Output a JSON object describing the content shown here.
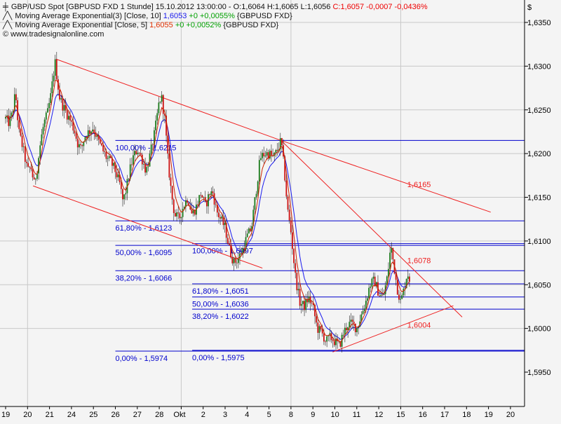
{
  "header": {
    "line1": {
      "icon": "bar-chart-icon",
      "prefix": "GBP/USD Spot [GBPUSD FXD  1 Stunde] 15.10.2012 13:00:00 - O:1,6064 H:1,6065 L:1,6056 ",
      "close_part": "C:1,6057 -0,0007 -0,0436%",
      "close_color": "#ee0000"
    },
    "line2": {
      "icon": "line-icon",
      "label": "Moving Average Exponential(3) [Close, 10] ",
      "value": "1,6053",
      "value_color": "#1a1aee",
      "change": " +0 +0,0055%",
      "change_color": "#00a000",
      "suffix": " {GBPUSD FXD}"
    },
    "line3": {
      "icon": "line-icon",
      "label": "Moving Average Exponential [Close, 5] ",
      "value": "1,6055",
      "value_color": "#e03000",
      "change": " +0 +0,0052%",
      "change_color": "#00a000",
      "suffix": " {GBPUSD FXD}"
    },
    "line4": {
      "icon": "copyright-icon",
      "text": "© www.tradesignalonline.com"
    }
  },
  "colors": {
    "background": "#f4f4f4",
    "grid": "#c8c8c8",
    "fib_line": "#0000cc",
    "trend_line": "#ee2020",
    "candle_up": "#1a7a1a",
    "candle_down": "#cc1111",
    "ema10": "#1a1aee",
    "ema5": "#cc2200",
    "axis": "#000000"
  },
  "chart_data": {
    "type": "candlestick",
    "title": "GBP/USD Spot [GBPUSD FXD  1 Stunde]",
    "currency_label": "$",
    "ylim": [
      1.5915,
      1.6375
    ],
    "y_ticks": [
      "1,5950",
      "1,6000",
      "1,6050",
      "1,6100",
      "1,6150",
      "1,6200",
      "1,6250",
      "1,6300",
      "1,6350"
    ],
    "y_tick_values": [
      1.595,
      1.6,
      1.605,
      1.61,
      1.615,
      1.62,
      1.625,
      1.63,
      1.635
    ],
    "x_ticks": [
      "19",
      "20",
      "21",
      "24",
      "25",
      "26",
      "27",
      "28",
      "Okt",
      "2",
      "3",
      "4",
      "5",
      "8",
      "9",
      "10",
      "11",
      "12",
      "15",
      "16",
      "17",
      "18",
      "19",
      "20"
    ],
    "x_tick_index": [
      0,
      1,
      2,
      3,
      4,
      5,
      6,
      7,
      8,
      9,
      10,
      11,
      12,
      13,
      14,
      15,
      16,
      17,
      18,
      19,
      20,
      21,
      22,
      23
    ],
    "grid": true,
    "price_series": [
      [
        0,
        1.624
      ],
      [
        0.15,
        1.6235
      ],
      [
        0.3,
        1.6245
      ],
      [
        0.45,
        1.627
      ],
      [
        0.6,
        1.6225
      ],
      [
        0.8,
        1.6205
      ],
      [
        1.0,
        1.618
      ],
      [
        1.15,
        1.6185
      ],
      [
        1.3,
        1.6165
      ],
      [
        1.45,
        1.6185
      ],
      [
        1.6,
        1.6215
      ],
      [
        1.75,
        1.6235
      ],
      [
        1.9,
        1.6245
      ],
      [
        2.05,
        1.6265
      ],
      [
        2.25,
        1.6305
      ],
      [
        2.45,
        1.6265
      ],
      [
        2.6,
        1.6255
      ],
      [
        2.8,
        1.6245
      ],
      [
        3.0,
        1.6235
      ],
      [
        3.15,
        1.6225
      ],
      [
        3.3,
        1.621
      ],
      [
        3.45,
        1.6205
      ],
      [
        3.6,
        1.622
      ],
      [
        3.8,
        1.6225
      ],
      [
        4.0,
        1.623
      ],
      [
        4.2,
        1.6215
      ],
      [
        4.4,
        1.6205
      ],
      [
        4.6,
        1.6195
      ],
      [
        4.8,
        1.619
      ],
      [
        5.0,
        1.618
      ],
      [
        5.2,
        1.6165
      ],
      [
        5.35,
        1.6145
      ],
      [
        5.5,
        1.616
      ],
      [
        5.65,
        1.618
      ],
      [
        5.8,
        1.6195
      ],
      [
        6.0,
        1.6205
      ],
      [
        6.2,
        1.6195
      ],
      [
        6.4,
        1.618
      ],
      [
        6.6,
        1.62
      ],
      [
        6.8,
        1.6225
      ],
      [
        7.0,
        1.626
      ],
      [
        7.1,
        1.6265
      ],
      [
        7.25,
        1.624
      ],
      [
        7.4,
        1.619
      ],
      [
        7.55,
        1.6155
      ],
      [
        7.7,
        1.613
      ],
      [
        7.9,
        1.6125
      ],
      [
        8.1,
        1.614
      ],
      [
        8.3,
        1.615
      ],
      [
        8.5,
        1.613
      ],
      [
        8.7,
        1.614
      ],
      [
        8.9,
        1.6155
      ],
      [
        9.1,
        1.614
      ],
      [
        9.3,
        1.6155
      ],
      [
        9.45,
        1.6155
      ],
      [
        9.6,
        1.6135
      ],
      [
        9.8,
        1.6125
      ],
      [
        10.0,
        1.6115
      ],
      [
        10.2,
        1.609
      ],
      [
        10.4,
        1.6075
      ],
      [
        10.6,
        1.608
      ],
      [
        10.8,
        1.609
      ],
      [
        11.0,
        1.6105
      ],
      [
        11.2,
        1.6115
      ],
      [
        11.4,
        1.6155
      ],
      [
        11.6,
        1.6195
      ],
      [
        11.8,
        1.62
      ],
      [
        12.0,
        1.62
      ],
      [
        12.2,
        1.6195
      ],
      [
        12.4,
        1.6205
      ],
      [
        12.55,
        1.6215
      ],
      [
        12.7,
        1.618
      ],
      [
        12.85,
        1.6135
      ],
      [
        13.0,
        1.611
      ],
      [
        13.2,
        1.606
      ],
      [
        13.4,
        1.603
      ],
      [
        13.6,
        1.6025
      ],
      [
        13.8,
        1.6035
      ],
      [
        14.0,
        1.6025
      ],
      [
        14.2,
        1.6
      ],
      [
        14.4,
        1.5995
      ],
      [
        14.6,
        1.5985
      ],
      [
        14.8,
        1.599
      ],
      [
        15.0,
        1.5985
      ],
      [
        15.2,
        1.598
      ],
      [
        15.4,
        1.5995
      ],
      [
        15.6,
        1.6005
      ],
      [
        15.8,
        1.6005
      ],
      [
        16.0,
        1.6
      ],
      [
        16.2,
        1.6015
      ],
      [
        16.4,
        1.603
      ],
      [
        16.6,
        1.605
      ],
      [
        16.8,
        1.6055
      ],
      [
        17.0,
        1.604
      ],
      [
        17.2,
        1.6035
      ],
      [
        17.4,
        1.606
      ],
      [
        17.55,
        1.6095
      ],
      [
        17.7,
        1.607
      ],
      [
        17.85,
        1.6045
      ],
      [
        18.0,
        1.603
      ],
      [
        18.15,
        1.6045
      ],
      [
        18.3,
        1.6064
      ],
      [
        18.4,
        1.6057
      ]
    ],
    "fibonacci_levels": [
      {
        "label": "100,00% - 1,6215",
        "price": 1.6215,
        "x_from": 5.0,
        "x_to": 24.4,
        "label_x": 5.0
      },
      {
        "label": "61,80% - 1,6123",
        "price": 1.6123,
        "x_from": 5.0,
        "x_to": 24.4,
        "label_x": 5.0
      },
      {
        "label": "50,00% - 1,6095",
        "price": 1.6095,
        "x_from": 5.0,
        "x_to": 24.4,
        "label_x": 5.0
      },
      {
        "label": "38,20% - 1,6066",
        "price": 1.6066,
        "x_from": 5.0,
        "x_to": 24.4,
        "label_x": 5.0
      },
      {
        "label": "0,00% - 1,5974",
        "price": 1.5974,
        "x_from": 5.0,
        "x_to": 24.4,
        "label_x": 5.0
      },
      {
        "label": "100,00% - 1,6097",
        "price": 1.6097,
        "x_from": 8.5,
        "x_to": 24.4,
        "label_x": 8.5
      },
      {
        "label": "61,80% - 1,6051",
        "price": 1.6051,
        "x_from": 8.5,
        "x_to": 24.4,
        "label_x": 8.5
      },
      {
        "label": "50,00% - 1,6036",
        "price": 1.6036,
        "x_from": 8.5,
        "x_to": 24.4,
        "label_x": 8.5
      },
      {
        "label": "38,20% - 1,6022",
        "price": 1.6022,
        "x_from": 8.5,
        "x_to": 24.4,
        "label_x": 8.5
      },
      {
        "label": "0,00% - 1,5975",
        "price": 1.5975,
        "x_from": 8.5,
        "x_to": 24.4,
        "label_x": 8.5
      }
    ],
    "trend_lines": [
      {
        "from": [
          2.3,
          1.6308
        ],
        "to": [
          12.55,
          1.6215
        ]
      },
      {
        "from": [
          12.55,
          1.6215
        ],
        "to": [
          22.1,
          1.6133
        ]
      },
      {
        "from": [
          1.25,
          1.6163
        ],
        "to": [
          11.7,
          1.6069
        ]
      },
      {
        "from": [
          12.55,
          1.6215
        ],
        "to": [
          20.8,
          1.6013
        ]
      },
      {
        "from": [
          14.9,
          1.5973
        ],
        "to": [
          20.4,
          1.6026
        ]
      }
    ],
    "annotations": [
      {
        "text": "1,6165",
        "x": 18.3,
        "price": 1.6165
      },
      {
        "text": "1,6078",
        "x": 18.3,
        "price": 1.6078
      },
      {
        "text": "1,6004",
        "x": 18.3,
        "price": 1.6004
      }
    ]
  }
}
